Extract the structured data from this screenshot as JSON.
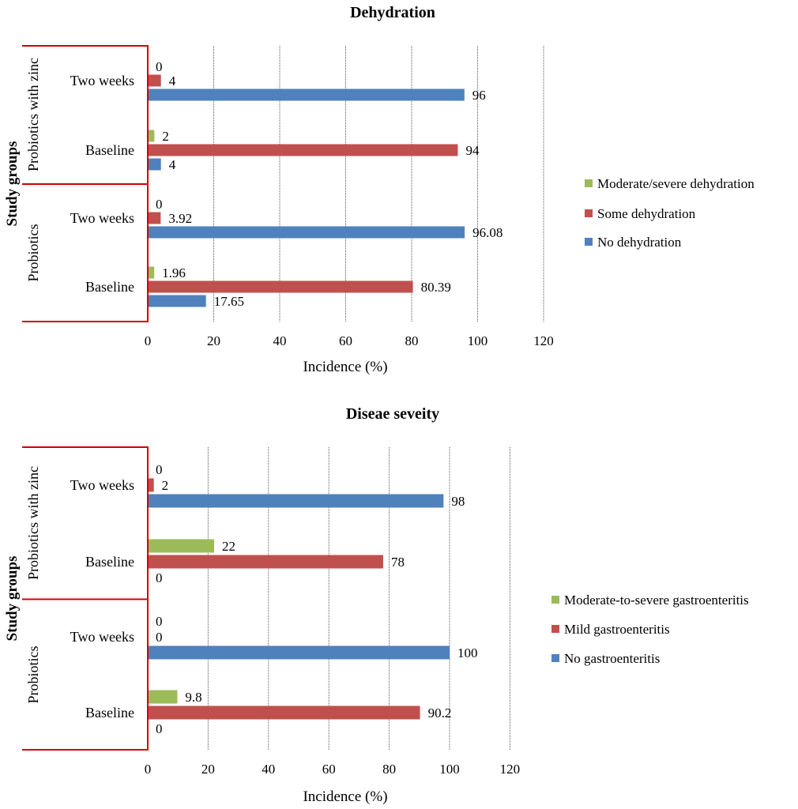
{
  "chart_data": [
    {
      "type": "bar",
      "orientation": "horizontal",
      "title": "Dehydration",
      "xlabel": "Incidence (%)",
      "ylabel": "Study groups",
      "xlim": [
        0,
        120
      ],
      "xticks": [
        "0",
        "20",
        "40",
        "60",
        "80",
        "100",
        "120"
      ],
      "groups": [
        "Probiotics with zinc",
        "Probiotics"
      ],
      "categories": [
        {
          "group": "Probiotics with zinc",
          "label": "Two weeks"
        },
        {
          "group": "Probiotics with zinc",
          "label": "Baseline"
        },
        {
          "group": "Probiotics",
          "label": "Two weeks"
        },
        {
          "group": "Probiotics",
          "label": "Baseline"
        }
      ],
      "series": [
        {
          "name": "Moderate/severe dehydration",
          "color": "#9bbb59",
          "values": [
            0,
            2,
            0,
            1.96
          ],
          "labels": [
            "0",
            "2",
            "0",
            "1.96"
          ]
        },
        {
          "name": "Some dehydration",
          "color": "#c0504d",
          "values": [
            4,
            94,
            3.92,
            80.39
          ],
          "labels": [
            "4",
            "94",
            "3.92",
            "80.39"
          ]
        },
        {
          "name": "No dehydration",
          "color": "#4f81bd",
          "values": [
            96,
            4,
            96.08,
            17.65
          ],
          "labels": [
            "96",
            "4",
            "96.08",
            "17.65"
          ]
        }
      ],
      "legend_position": "right"
    },
    {
      "type": "bar",
      "orientation": "horizontal",
      "title": "Diseae seveity",
      "xlabel": "Incidence (%)",
      "ylabel": "Study groups",
      "xlim": [
        0,
        120
      ],
      "xticks": [
        "0",
        "20",
        "40",
        "60",
        "80",
        "100",
        "120"
      ],
      "groups": [
        "Probiotics with zinc",
        "Probiotics"
      ],
      "categories": [
        {
          "group": "Probiotics with zinc",
          "label": "Two weeks"
        },
        {
          "group": "Probiotics with zinc",
          "label": "Baseline"
        },
        {
          "group": "Probiotics",
          "label": "Two weeks"
        },
        {
          "group": "Probiotics",
          "label": "Baseline"
        }
      ],
      "series": [
        {
          "name": "Moderate-to-severe gastroenteritis",
          "color": "#9bbb59",
          "values": [
            0,
            22,
            0,
            9.8
          ],
          "labels": [
            "0",
            "22",
            "0",
            "9.8"
          ]
        },
        {
          "name": "Mild gastroenteritis",
          "color": "#c0504d",
          "values": [
            2,
            78,
            0,
            90.2
          ],
          "labels": [
            "2",
            "78",
            "0",
            "90.2"
          ]
        },
        {
          "name": "No gastroenteritis",
          "color": "#4f81bd",
          "values": [
            98,
            0,
            100,
            0
          ],
          "labels": [
            "98",
            "0",
            "100",
            "0"
          ]
        }
      ],
      "legend_position": "right"
    }
  ]
}
